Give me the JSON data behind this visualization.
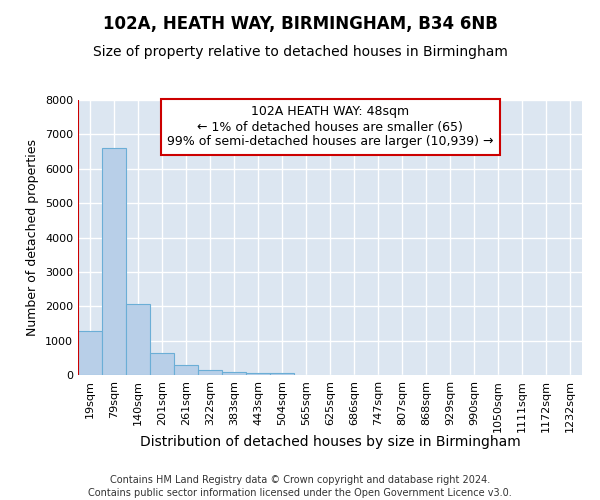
{
  "title1": "102A, HEATH WAY, BIRMINGHAM, B34 6NB",
  "title2": "Size of property relative to detached houses in Birmingham",
  "xlabel": "Distribution of detached houses by size in Birmingham",
  "ylabel": "Number of detached properties",
  "footnote1": "Contains HM Land Registry data © Crown copyright and database right 2024.",
  "footnote2": "Contains public sector information licensed under the Open Government Licence v3.0.",
  "annotation_line1": "102A HEATH WAY: 48sqm",
  "annotation_line2": "← 1% of detached houses are smaller (65)",
  "annotation_line3": "99% of semi-detached houses are larger (10,939) →",
  "bar_labels": [
    "19sqm",
    "79sqm",
    "140sqm",
    "201sqm",
    "261sqm",
    "322sqm",
    "383sqm",
    "443sqm",
    "504sqm",
    "565sqm",
    "625sqm",
    "686sqm",
    "747sqm",
    "807sqm",
    "868sqm",
    "929sqm",
    "990sqm",
    "1050sqm",
    "1111sqm",
    "1172sqm",
    "1232sqm"
  ],
  "bar_values": [
    1280,
    6600,
    2070,
    640,
    300,
    150,
    100,
    60,
    60,
    0,
    0,
    0,
    0,
    0,
    0,
    0,
    0,
    0,
    0,
    0,
    0
  ],
  "bar_color": "#b8cfe8",
  "bar_edge_color": "#6baed6",
  "red_line_x": -0.5,
  "ylim": [
    0,
    8000
  ],
  "yticks": [
    0,
    1000,
    2000,
    3000,
    4000,
    5000,
    6000,
    7000,
    8000
  ],
  "fig_bg_color": "#ffffff",
  "plot_bg_color": "#dce6f1",
  "grid_color": "#ffffff",
  "annotation_box_edge": "#cc0000",
  "red_line_color": "#cc0000",
  "title1_fontsize": 12,
  "title2_fontsize": 10,
  "xlabel_fontsize": 10,
  "ylabel_fontsize": 9,
  "tick_fontsize": 8,
  "annotation_fontsize": 9,
  "footnote_fontsize": 7
}
